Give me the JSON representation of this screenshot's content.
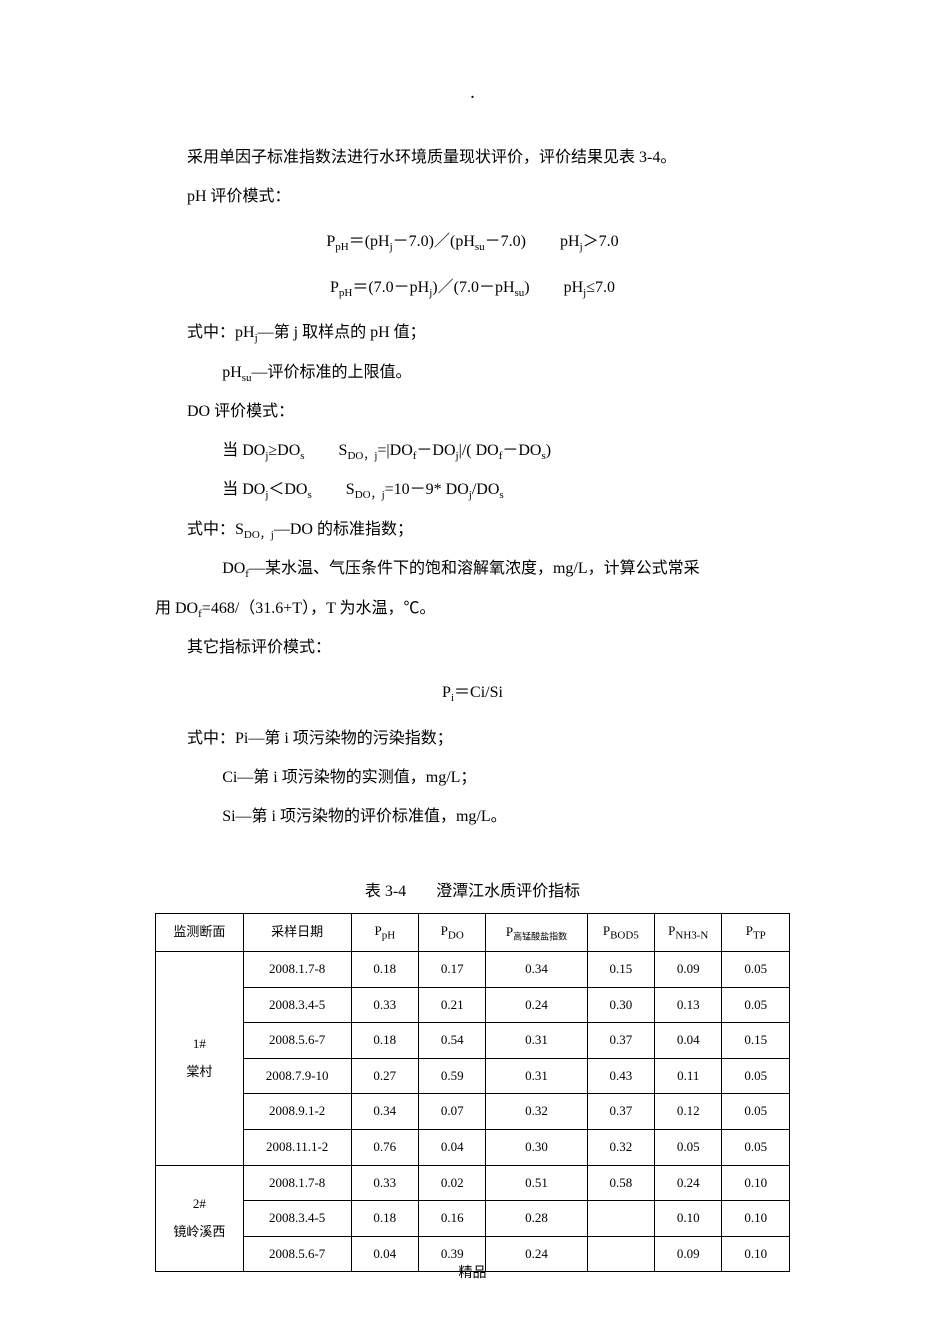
{
  "top_dot": ".",
  "intro": "采用单因子标准指数法进行水环境质量现状评价，评价结果见表 3-4。",
  "ph_mode_label": "pH 评价模式：",
  "ph_formula1_main": "P",
  "ph_formula1_sub": "pH",
  "ph_formula1_eq": "＝(pH",
  "ph_formula1_j": "j",
  "ph_formula1_mid": "－7.0)／(pH",
  "ph_formula1_su": "su",
  "ph_formula1_end": "－7.0)",
  "ph_formula1_cond_pre": "pH",
  "ph_formula1_cond": "＞7.0",
  "ph_formula2_eq": "＝(7.0－pH",
  "ph_formula2_mid": ")／(7.0－pH",
  "ph_formula2_end": ")",
  "ph_formula2_cond": "≤7.0",
  "where_label": "式中：pH",
  "where_j": "j",
  "where_text1": "—第 j 取样点的 pH 值；",
  "where_phsu_pre": "pH",
  "where_phsu_sub": "su",
  "where_text2": "—评价标准的上限值。",
  "do_mode_label": "DO 评价模式：",
  "do_line1_pre": "当 DO",
  "do_line1_j": "j",
  "do_line1_ge": "≥DO",
  "do_line1_s": "s",
  "do_line1_S": "S",
  "do_line1_Ssub": "DO，j",
  "do_line1_formula": "=|DO",
  "do_line1_f": "f",
  "do_line1_minus": "－DO",
  "do_line1_bar": "|/( DO",
  "do_line1_minus2": "－DO",
  "do_line1_close": ")",
  "do_line2_lt": "＜DO",
  "do_line2_formula": "=10－9* DO",
  "do_line2_div": "/DO",
  "do_where_pre": "式中：S",
  "do_where_sub": "DO，j",
  "do_where_text": "—DO 的标准指数；",
  "dof_pre": "DO",
  "dof_sub": "f",
  "dof_text": "—某水温、气压条件下的饱和溶解氧浓度，mg/L，计算公式常采",
  "dof_cont_pre": "用 DO",
  "dof_cont": "=468/（31.6+T），T 为水温，℃。",
  "other_mode_label": "其它指标评价模式：",
  "pi_formula_P": "P",
  "pi_formula_i": "i",
  "pi_formula_eq": "＝Ci/Si",
  "pi_where": "式中：Pi—第 i 项污染物的污染指数；",
  "ci_text": "Ci—第 i 项污染物的实测值，mg/L；",
  "si_text": "Si—第 i 项污染物的评价标准值，mg/L。",
  "table_num": "表 3-4",
  "table_title": "澄潭江水质评价指标",
  "table": {
    "columns": {
      "c0": "监测断面",
      "c1": "采样日期",
      "c2_pre": "P",
      "c2_sub": "pH",
      "c3_pre": "P",
      "c3_sub": "DO",
      "c4_pre": "P",
      "c4_sub": "高锰酸盐指数",
      "c5_pre": "P",
      "c5_sub": "BOD5",
      "c6_pre": "P",
      "c6_sub": "NH3-N",
      "c7_pre": "P",
      "c7_sub": "TP"
    },
    "section1_label_l1": "1#",
    "section1_label_l2": "棠村",
    "section2_label_l1": "2#",
    "section2_label_l2": "镜岭溪西",
    "rows": [
      {
        "d": "2008.1.7-8",
        "v": [
          "0.18",
          "0.17",
          "0.34",
          "0.15",
          "0.09",
          "0.05"
        ]
      },
      {
        "d": "2008.3.4-5",
        "v": [
          "0.33",
          "0.21",
          "0.24",
          "0.30",
          "0.13",
          "0.05"
        ]
      },
      {
        "d": "2008.5.6-7",
        "v": [
          "0.18",
          "0.54",
          "0.31",
          "0.37",
          "0.04",
          "0.15"
        ]
      },
      {
        "d": "2008.7.9-10",
        "v": [
          "0.27",
          "0.59",
          "0.31",
          "0.43",
          "0.11",
          "0.05"
        ]
      },
      {
        "d": "2008.9.1-2",
        "v": [
          "0.34",
          "0.07",
          "0.32",
          "0.37",
          "0.12",
          "0.05"
        ]
      },
      {
        "d": "2008.11.1-2",
        "v": [
          "0.76",
          "0.04",
          "0.30",
          "0.32",
          "0.05",
          "0.05"
        ]
      },
      {
        "d": "2008.1.7-8",
        "v": [
          "0.33",
          "0.02",
          "0.51",
          "0.58",
          "0.24",
          "0.10"
        ]
      },
      {
        "d": "2008.3.4-5",
        "v": [
          "0.18",
          "0.16",
          "0.28",
          "",
          "0.10",
          "0.10"
        ]
      },
      {
        "d": "2008.5.6-7",
        "v": [
          "0.04",
          "0.39",
          "0.24",
          "",
          "0.09",
          "0.10"
        ]
      }
    ]
  },
  "footer": "精品"
}
